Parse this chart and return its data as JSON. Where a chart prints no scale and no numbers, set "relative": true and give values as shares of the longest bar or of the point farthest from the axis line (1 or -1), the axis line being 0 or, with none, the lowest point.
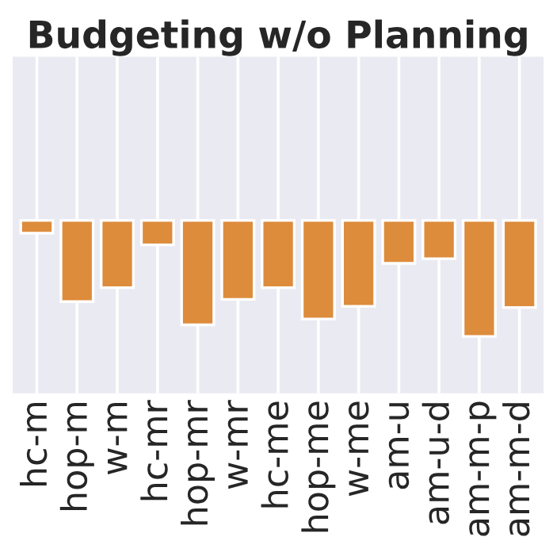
{
  "chart_data": {
    "type": "bar",
    "title": "Budgeting w/o Planning",
    "categories": [
      "hc-m",
      "hop-m",
      "w-m",
      "hc-mr",
      "hop-mr",
      "w-mr",
      "hc-me",
      "hop-me",
      "w-me",
      "am-u",
      "am-u-d",
      "am-m-p",
      "am-m-d"
    ],
    "values": [
      -0.11,
      -0.7,
      -0.58,
      -0.21,
      -0.9,
      -0.68,
      -0.58,
      -0.85,
      -0.74,
      -0.37,
      -0.33,
      -1,
      -0.75
    ],
    "color": "#dd8c3c",
    "relative": true,
    "grid": "x"
  }
}
